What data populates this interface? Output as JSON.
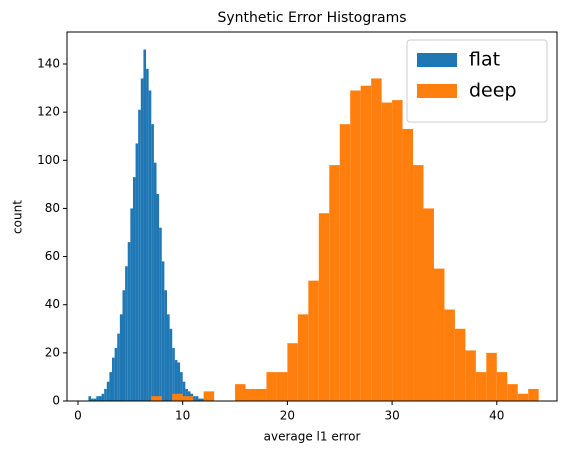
{
  "chart_data": {
    "type": "histogram",
    "title": "Synthetic Error Histograms",
    "x_label": "average l1 error",
    "y_label": "count",
    "xlim": [
      -1.05,
      45.75
    ],
    "ylim": [
      0,
      153.3
    ],
    "xticks": [
      0,
      10,
      20,
      30,
      40
    ],
    "yticks": [
      0,
      20,
      40,
      60,
      80,
      100,
      120,
      140
    ],
    "legend_position": "upper right",
    "series": [
      {
        "name": "flat",
        "color": "#1f77b4",
        "bins": [
          1.0,
          1.25,
          1.5,
          1.75,
          2.0,
          2.25,
          2.5,
          2.75,
          3.0,
          3.25,
          3.5,
          3.75,
          4.0,
          4.25,
          4.5,
          4.75,
          5.0,
          5.25,
          5.5,
          5.75,
          6.0,
          6.25,
          6.5,
          6.75,
          7.0,
          7.25,
          7.5,
          7.75,
          8.0,
          8.25,
          8.5,
          8.75,
          9.0,
          9.25,
          9.5,
          9.75,
          10.0,
          10.25,
          10.5,
          10.75,
          11.0,
          11.25,
          11.5,
          11.75,
          12.0,
          12.25,
          12.5,
          12.75,
          13.0
        ],
        "values": [
          2,
          1,
          1,
          2,
          2,
          3,
          5,
          8,
          12,
          18,
          22,
          28,
          36,
          46,
          56,
          66,
          80,
          93,
          107,
          121,
          134,
          146,
          138,
          129,
          115,
          99,
          86,
          72,
          58,
          46,
          36,
          30,
          22,
          17,
          16,
          12,
          8,
          5,
          4,
          3,
          2,
          2,
          1,
          1,
          1,
          0,
          1,
          1
        ]
      },
      {
        "name": "deep",
        "color": "#ff7f0e",
        "bins": [
          7,
          8,
          9,
          10,
          11,
          12,
          13,
          14,
          15,
          16,
          17,
          18,
          19,
          20,
          21,
          22,
          23,
          24,
          25,
          26,
          27,
          28,
          29,
          30,
          31,
          32,
          33,
          34,
          35,
          36,
          37,
          38,
          39,
          40,
          41,
          42,
          43,
          44
        ],
        "values": [
          2,
          0,
          3,
          2,
          0,
          4,
          0,
          0,
          7,
          5,
          5,
          12,
          12,
          24,
          36,
          50,
          78,
          98,
          115,
          129,
          131,
          134,
          124,
          125,
          113,
          98,
          80,
          55,
          38,
          30,
          21,
          12,
          20,
          12,
          7,
          3,
          5
        ]
      }
    ]
  }
}
